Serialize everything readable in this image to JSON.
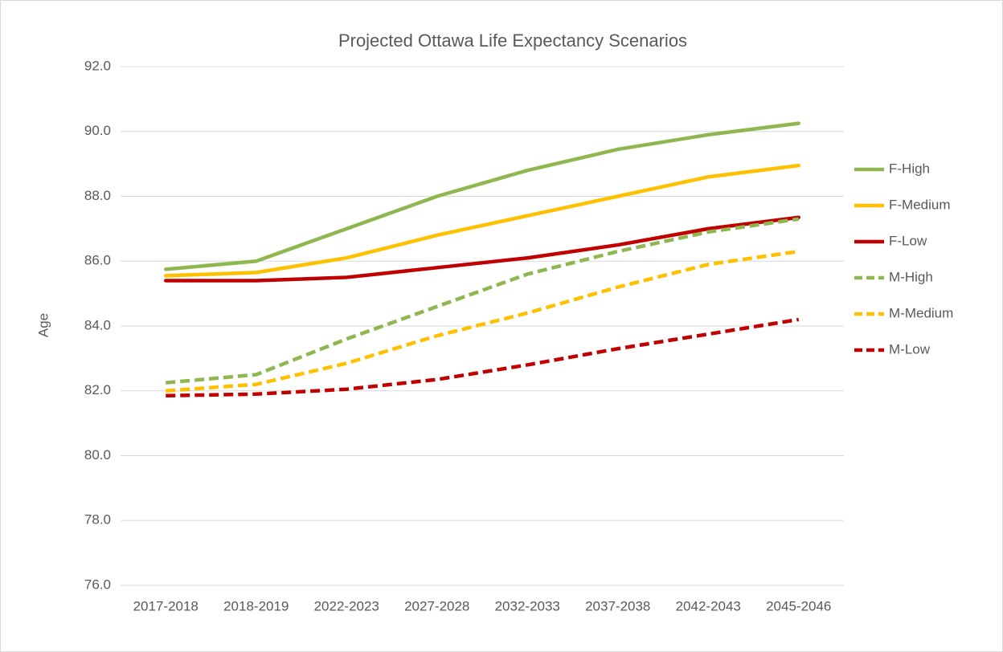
{
  "chart_data": {
    "type": "line",
    "title": "Projected Ottawa Life Expectancy Scenarios",
    "y_label": "Age",
    "categories": [
      "2017-2018",
      "2018-2019",
      "2022-2023",
      "2027-2028",
      "2032-2033",
      "2037-2038",
      "2042-2043",
      "2045-2046"
    ],
    "series": [
      {
        "name": "F-High",
        "color": "#8fb74f",
        "dashed": false,
        "values": [
          85.75,
          86.0,
          87.0,
          88.0,
          88.8,
          89.45,
          89.9,
          90.25
        ]
      },
      {
        "name": "F-Medium",
        "color": "#ffc000",
        "dashed": false,
        "values": [
          85.55,
          85.65,
          86.1,
          86.8,
          87.4,
          88.0,
          88.6,
          88.95
        ]
      },
      {
        "name": "F-Low",
        "color": "#c00000",
        "dashed": false,
        "values": [
          85.4,
          85.4,
          85.5,
          85.8,
          86.1,
          86.5,
          87.0,
          87.35
        ]
      },
      {
        "name": "M-High",
        "color": "#8fb74f",
        "dashed": true,
        "values": [
          82.25,
          82.5,
          83.6,
          84.6,
          85.6,
          86.3,
          86.9,
          87.3
        ]
      },
      {
        "name": "M-Medium",
        "color": "#ffc000",
        "dashed": true,
        "values": [
          82.0,
          82.2,
          82.85,
          83.7,
          84.4,
          85.2,
          85.9,
          86.3
        ]
      },
      {
        "name": "M-Low",
        "color": "#c00000",
        "dashed": true,
        "values": [
          81.85,
          81.9,
          82.05,
          82.35,
          82.8,
          83.3,
          83.75,
          84.2
        ]
      }
    ],
    "ylim": [
      76,
      92
    ],
    "yticks": [
      {
        "value": 76,
        "label": "76.0"
      },
      {
        "value": 78,
        "label": "78.0"
      },
      {
        "value": 80,
        "label": "80.0"
      },
      {
        "value": 82,
        "label": "82.0"
      },
      {
        "value": 84,
        "label": "84.0"
      },
      {
        "value": 86,
        "label": "86.0"
      },
      {
        "value": 88,
        "label": "88.0"
      },
      {
        "value": 90,
        "label": "90.0"
      },
      {
        "value": 92,
        "label": "92.0"
      }
    ],
    "grid": true,
    "legend": "right"
  }
}
